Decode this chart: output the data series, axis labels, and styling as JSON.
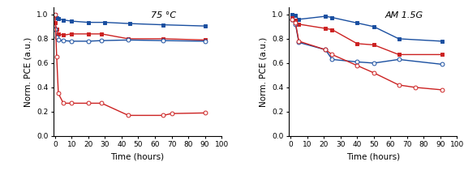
{
  "left_title": "75 °C",
  "right_title": "AM 1.5G",
  "xlabel": "Time (hours)",
  "ylabel": "Norm. PCE (a.u.)",
  "left": {
    "blue_filled": {
      "x": [
        0,
        1,
        2,
        5,
        10,
        20,
        30,
        45,
        65,
        90
      ],
      "y": [
        1.0,
        0.975,
        0.965,
        0.955,
        0.945,
        0.935,
        0.935,
        0.925,
        0.915,
        0.905
      ]
    },
    "red_filled": {
      "x": [
        0,
        1,
        2,
        5,
        10,
        20,
        28,
        44,
        65,
        90
      ],
      "y": [
        0.93,
        0.88,
        0.84,
        0.83,
        0.84,
        0.84,
        0.84,
        0.8,
        0.8,
        0.79
      ]
    },
    "blue_open": {
      "x": [
        0,
        1,
        2,
        5,
        10,
        20,
        28,
        44,
        65,
        90
      ],
      "y": [
        0.88,
        0.81,
        0.79,
        0.785,
        0.78,
        0.78,
        0.785,
        0.79,
        0.785,
        0.78
      ]
    },
    "red_open": {
      "x": [
        0,
        1,
        2,
        5,
        10,
        20,
        28,
        44,
        65,
        70,
        90
      ],
      "y": [
        1.0,
        0.65,
        0.35,
        0.27,
        0.27,
        0.27,
        0.27,
        0.17,
        0.17,
        0.185,
        0.19
      ]
    }
  },
  "right": {
    "blue_filled": {
      "x": [
        1,
        3,
        5,
        21,
        25,
        40,
        50,
        65,
        91
      ],
      "y": [
        1.0,
        0.99,
        0.96,
        0.985,
        0.975,
        0.93,
        0.9,
        0.8,
        0.78
      ]
    },
    "red_filled": {
      "x": [
        1,
        3,
        5,
        21,
        25,
        40,
        50,
        65,
        91
      ],
      "y": [
        0.97,
        0.95,
        0.92,
        0.885,
        0.875,
        0.76,
        0.75,
        0.67,
        0.67
      ]
    },
    "blue_open": {
      "x": [
        1,
        3,
        5,
        21,
        25,
        40,
        50,
        65,
        91
      ],
      "y": [
        0.96,
        0.92,
        0.77,
        0.71,
        0.63,
        0.61,
        0.6,
        0.63,
        0.59
      ]
    },
    "red_open": {
      "x": [
        1,
        3,
        5,
        21,
        25,
        40,
        50,
        65,
        75,
        91
      ],
      "y": [
        0.96,
        0.93,
        0.78,
        0.71,
        0.67,
        0.58,
        0.52,
        0.42,
        0.4,
        0.38
      ]
    }
  },
  "blue_color": "#1a4fa0",
  "red_color": "#cc2222",
  "marker_size": 3.5,
  "line_width": 1.0
}
